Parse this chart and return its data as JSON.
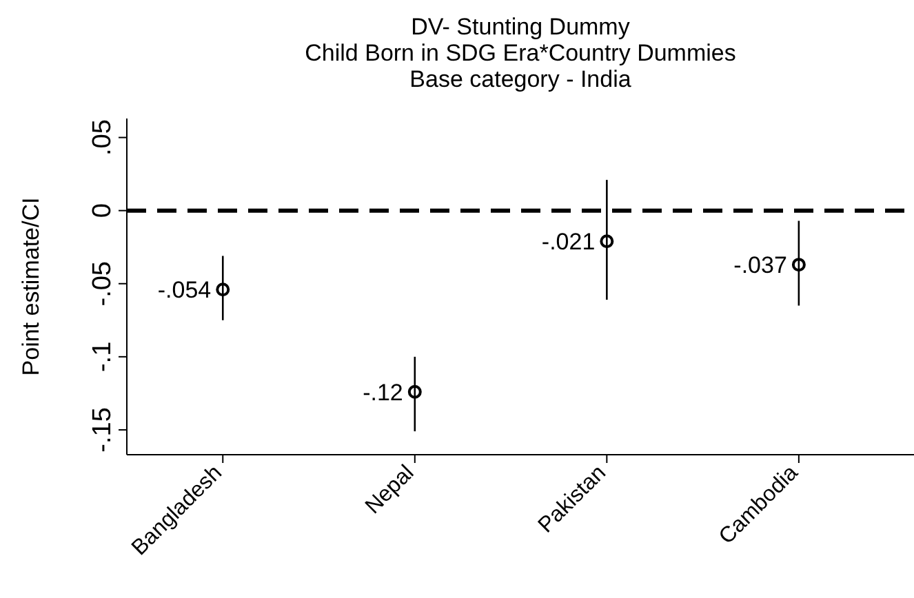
{
  "chart_data": {
    "type": "scatter",
    "title": "DV- Stunting Dummy\nChild Born in SDG Era*Country Dummies\nBase category - India",
    "ylabel": "Point estimate/CI",
    "categories": [
      "Bangladesh",
      "Nepal",
      "Pakistan",
      "Cambodia"
    ],
    "values": [
      -0.054,
      -0.124,
      -0.021,
      -0.037
    ],
    "value_labels": [
      "-.054",
      "-.12",
      "-.021",
      "-.037"
    ],
    "errors": [
      [
        -0.075,
        -0.031
      ],
      [
        -0.151,
        -0.1
      ],
      [
        -0.061,
        0.021
      ],
      [
        -0.065,
        -0.007
      ]
    ],
    "color": "#000000",
    "marker": "circle",
    "grid": false,
    "legend": false,
    "ylim": [
      -0.167,
      0.063
    ],
    "yticks": [
      {
        "value": -0.15,
        "label": "-.15"
      },
      {
        "value": -0.1,
        "label": "-.1"
      },
      {
        "value": -0.05,
        "label": "-.05"
      },
      {
        "value": 0,
        "label": "0"
      },
      {
        "value": 0.05,
        "label": ".05"
      }
    ],
    "ref_lines": [
      {
        "axis": "y",
        "value": 0,
        "label": null,
        "color": "#000000",
        "line_style": "dashed"
      }
    ]
  }
}
